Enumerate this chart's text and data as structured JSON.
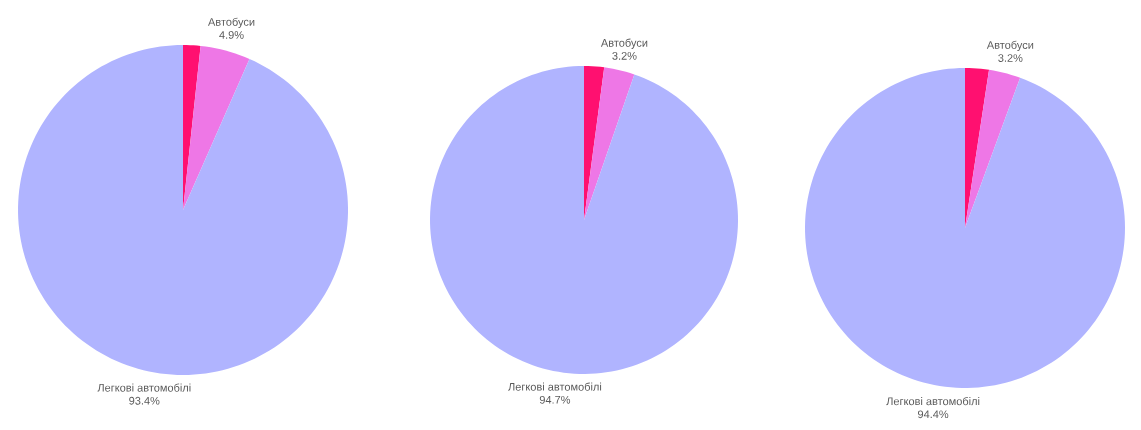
{
  "chart_data": [
    {
      "type": "pie",
      "categories": [
        null,
        "Автобуси",
        "Легкові автомобілі"
      ],
      "values": [
        1.7,
        4.9,
        93.4
      ],
      "colors": [
        "#ff1070",
        "#ee77e6",
        "#b0b4ff"
      ],
      "value_labels": [
        null,
        "4.9%",
        "93.4%"
      ]
    },
    {
      "type": "pie",
      "categories": [
        null,
        "Автобуси",
        "Легкові автомобілі"
      ],
      "values": [
        2.1,
        3.2,
        94.7
      ],
      "colors": [
        "#ff1070",
        "#ee77e6",
        "#b0b4ff"
      ],
      "value_labels": [
        null,
        "3.2%",
        "94.7%"
      ]
    },
    {
      "type": "pie",
      "categories": [
        null,
        "Автобуси",
        "Легкові автомобілі"
      ],
      "values": [
        2.4,
        3.2,
        94.4
      ],
      "colors": [
        "#ff1070",
        "#ee77e6",
        "#b0b4ff"
      ],
      "value_labels": [
        null,
        "3.2%",
        "94.4%"
      ]
    }
  ]
}
